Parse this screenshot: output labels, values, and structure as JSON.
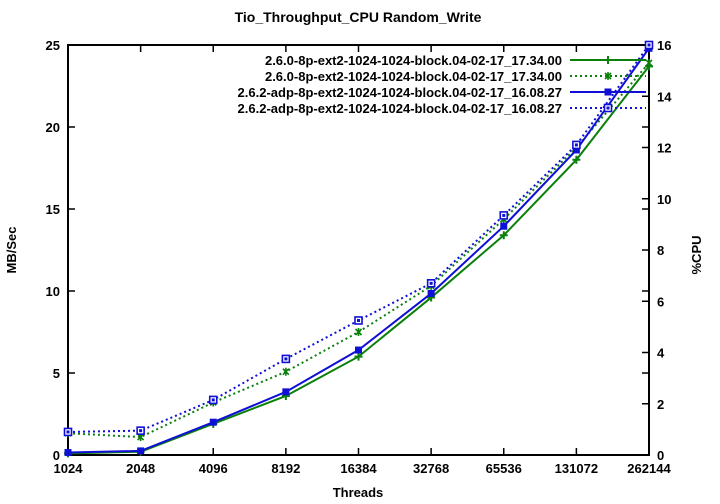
{
  "title": "Tio_Throughput_CPU Random_Write",
  "axes": {
    "x_label": "Threads",
    "y_left_label": "MB/Sec",
    "y_right_label": "%CPU",
    "x_tick_labels": [
      "1024",
      "2048",
      "4096",
      "8192",
      "16384",
      "32768",
      "65536",
      "131072",
      "262144"
    ],
    "y_left_tick_labels": [
      "0",
      "5",
      "10",
      "15",
      "20",
      "25"
    ],
    "y_left_tick_values": [
      0,
      5,
      10,
      15,
      20,
      25
    ],
    "y_right_tick_labels": [
      "0",
      "2",
      "4",
      "6",
      "8",
      "10",
      "12",
      "14",
      "16"
    ],
    "y_right_tick_values": [
      0,
      2,
      4,
      6,
      8,
      10,
      12,
      14,
      16
    ],
    "y_left_range": [
      0,
      25
    ],
    "y_right_range": [
      0,
      16
    ],
    "mirrored_left_ticks_on_right": [
      5,
      10,
      15,
      20
    ]
  },
  "colors": {
    "green_series": "#0a800a",
    "blue_series": "#0f0fd6",
    "foreground": "#000000",
    "background": "#ffffff"
  },
  "chart_data": {
    "type": "line",
    "x_scale": "log2-categories",
    "categories": [
      "1024",
      "2048",
      "4096",
      "8192",
      "16384",
      "32768",
      "65536",
      "131072",
      "262144"
    ],
    "title": "Tio_Throughput_CPU Random_Write",
    "xlabel": "Threads",
    "ylabel": "MB/Sec",
    "y2label": "%CPU",
    "ylim": [
      0,
      25
    ],
    "y2lim": [
      0,
      16
    ],
    "grid": false,
    "legend_position": "top-right-inside",
    "series": [
      {
        "name": "2.6.0-8p-ext2-1024-1024-block.04-02-17_17.34.00",
        "axis": "left",
        "unit": "MB/Sec",
        "style": "solid",
        "marker": "plus",
        "color": "#0a800a",
        "values": [
          0.1,
          0.2,
          1.9,
          3.6,
          6.0,
          9.6,
          13.4,
          18.0,
          23.7
        ]
      },
      {
        "name": "2.6.0-8p-ext2-1024-1024-block.04-02-17_17.34.00",
        "axis": "right",
        "unit": "%CPU",
        "style": "dotted",
        "marker": "star",
        "color": "#0a800a",
        "values": [
          0.85,
          0.7,
          2.05,
          3.25,
          4.8,
          6.6,
          9.2,
          12.0,
          15.3
        ]
      },
      {
        "name": "2.6.2-adp-8p-ext2-1024-1024-block.04-02-17_16.08.27",
        "axis": "left",
        "unit": "MB/Sec",
        "style": "solid",
        "marker": "square-filled",
        "color": "#0f0fd6",
        "values": [
          0.15,
          0.25,
          2.0,
          3.85,
          6.4,
          9.85,
          13.95,
          18.6,
          24.8
        ]
      },
      {
        "name": "2.6.2-adp-8p-ext2-1024-1024-block.04-02-17_16.08.27",
        "axis": "right",
        "unit": "%CPU",
        "style": "dotted",
        "marker": "square-open",
        "color": "#0f0fd6",
        "values": [
          0.9,
          0.95,
          2.15,
          3.75,
          5.25,
          6.7,
          9.35,
          12.1,
          16.0
        ]
      }
    ]
  }
}
